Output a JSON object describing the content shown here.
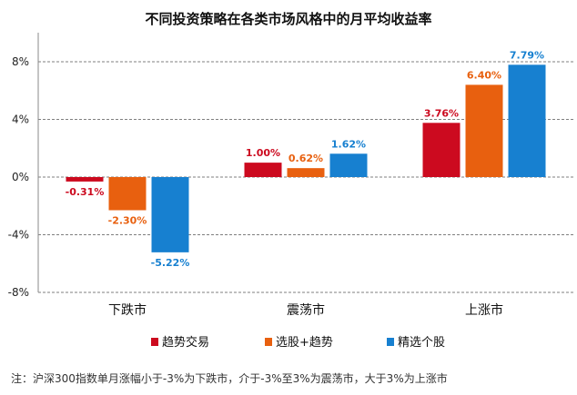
{
  "chart_data": {
    "type": "bar",
    "title": "不同投资策略在各类市场风格中的月平均收益率",
    "categories": [
      "下跌市",
      "震荡市",
      "上涨市"
    ],
    "series": [
      {
        "name": "趋势交易",
        "values": [
          -0.31,
          1.0,
          3.76
        ],
        "labels": [
          "-0.31%",
          "1.00%",
          "3.76%"
        ],
        "color": "#cc0a1f"
      },
      {
        "name": "选股+趋势",
        "values": [
          -2.3,
          0.62,
          6.4
        ],
        "labels": [
          "-2.30%",
          "0.62%",
          "6.40%"
        ],
        "color": "#e8600f"
      },
      {
        "name": "精选个股",
        "values": [
          -5.22,
          1.62,
          7.79
        ],
        "labels": [
          "-5.22%",
          "1.62%",
          "7.79%"
        ],
        "color": "#1780d0"
      }
    ],
    "yticks": [
      8,
      4,
      0,
      -4,
      -8
    ],
    "ytick_labels": [
      "8%",
      "4%",
      "0%",
      "-4%",
      "-8%"
    ],
    "ylim": [
      -8,
      8
    ],
    "grid": true,
    "legend_position": "bottom"
  },
  "note": "注：沪深300指数单月涨幅小于-3%为下跌市，介于-3%至3%为震荡市，大于3%为上涨市"
}
